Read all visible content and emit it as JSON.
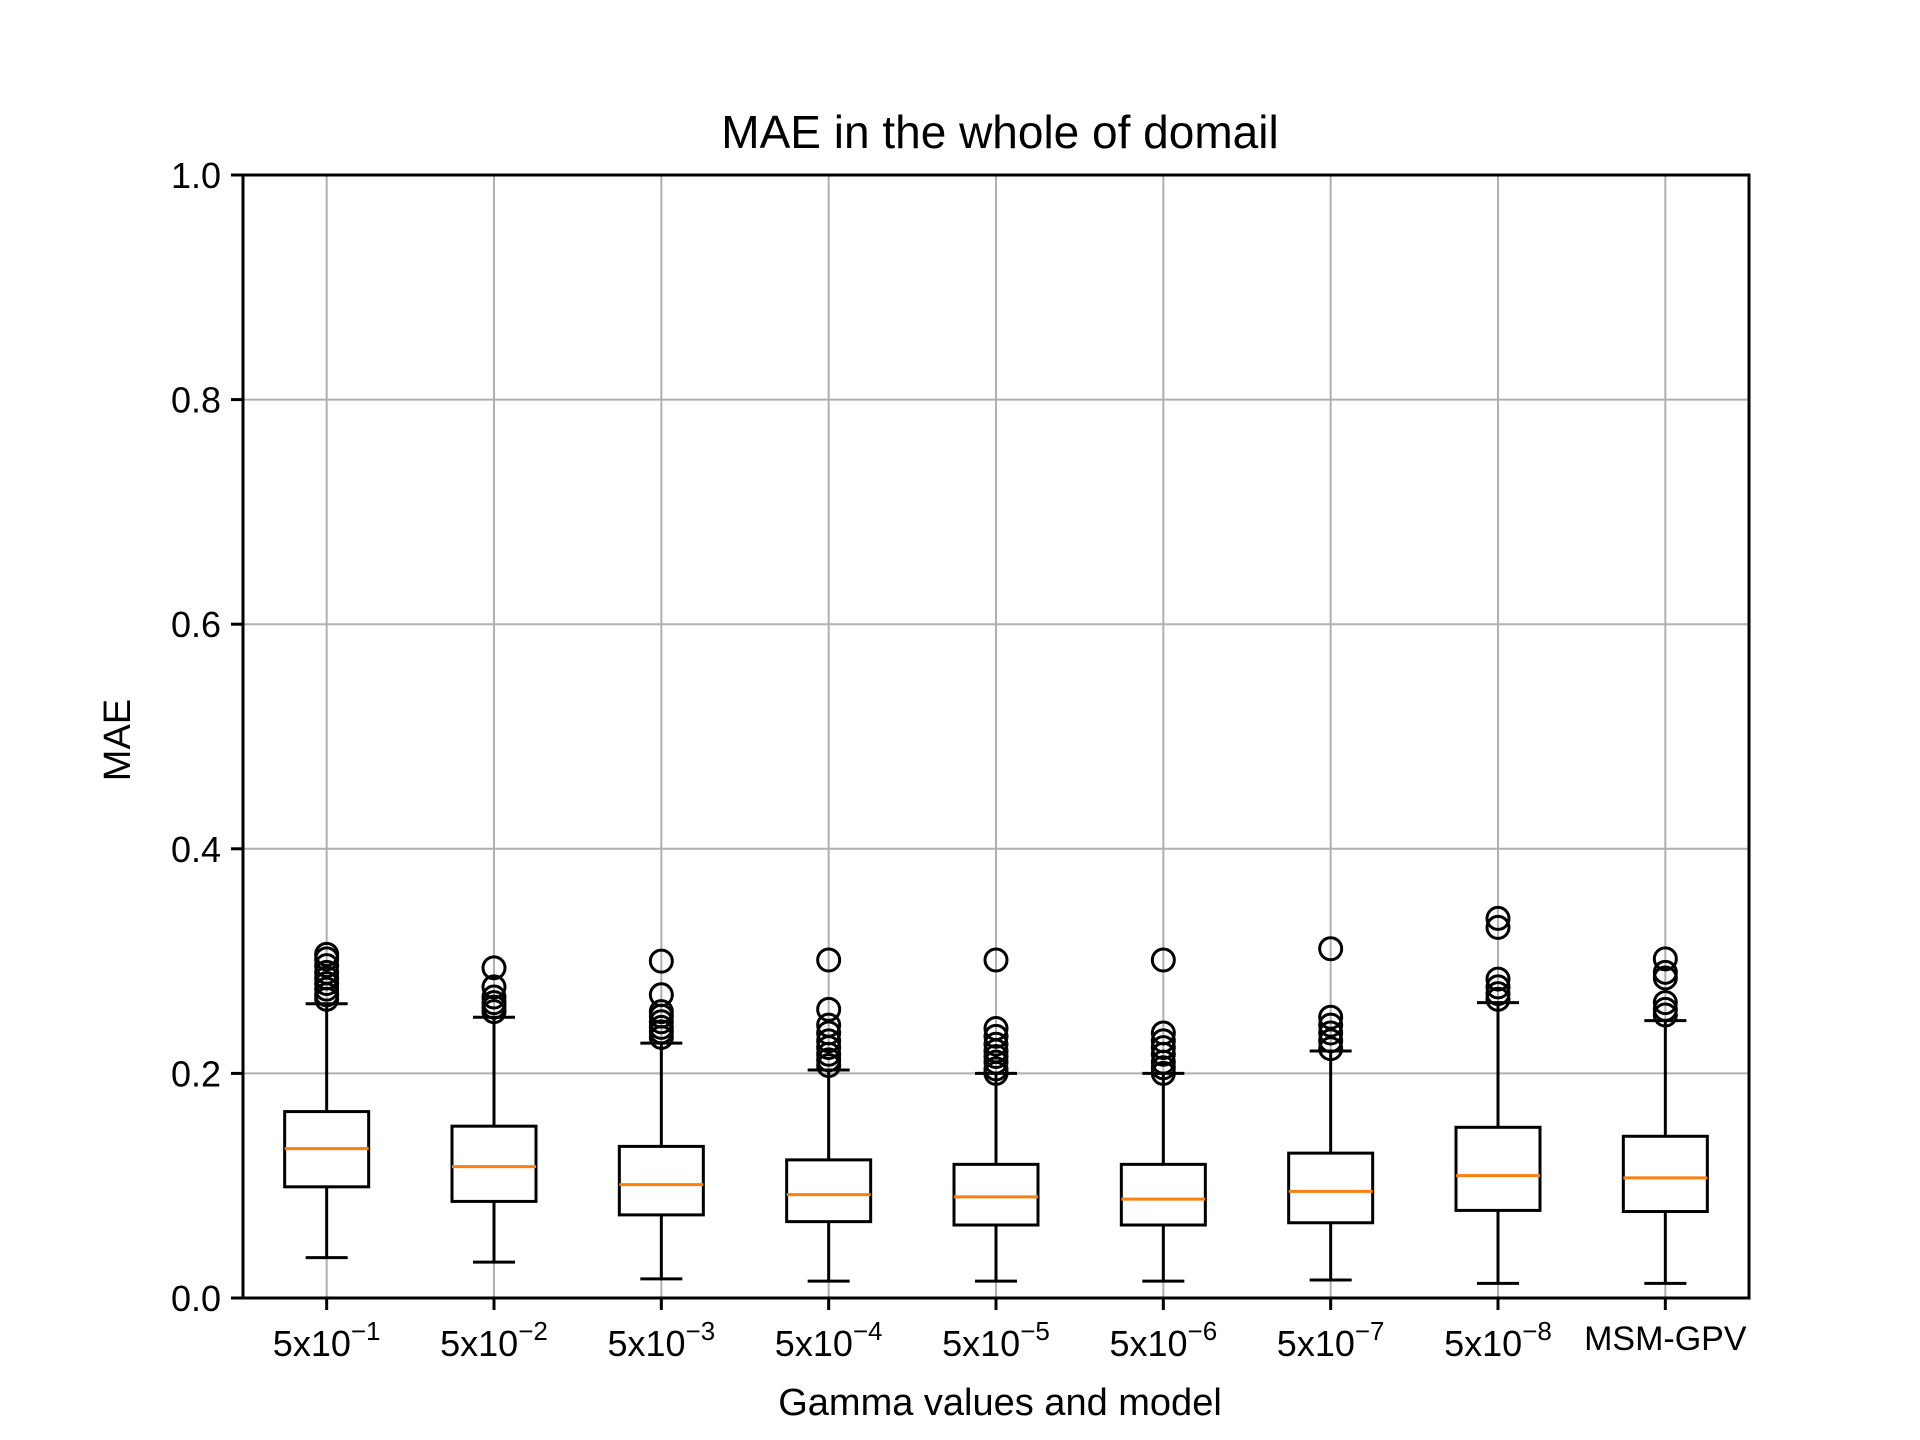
{
  "chart_data": {
    "type": "box",
    "title": "MAE in the whole of domail",
    "xlabel": "Gamma values and model",
    "ylabel": "MAE",
    "ylim": [
      0,
      1.0
    ],
    "yticks": [
      "0.0",
      "0.2",
      "0.4",
      "0.6",
      "0.8",
      "1.0"
    ],
    "yticks_values": [
      0,
      0.2,
      0.4,
      0.6,
      0.8,
      1.0
    ],
    "grid": true,
    "colors": {
      "box": "#000000",
      "median": "#ff7f0e",
      "grid": "#b0b0b0"
    },
    "categories": [
      {
        "label": "5x10",
        "exp": "−1"
      },
      {
        "label": "5x10",
        "exp": "−2"
      },
      {
        "label": "5x10",
        "exp": "−3"
      },
      {
        "label": "5x10",
        "exp": "−4"
      },
      {
        "label": "5x10",
        "exp": "−5"
      },
      {
        "label": "5x10",
        "exp": "−6"
      },
      {
        "label": "5x10",
        "exp": "−7"
      },
      {
        "label": "5x10",
        "exp": "−8"
      },
      {
        "label": "MSM-GPV",
        "exp": ""
      }
    ],
    "boxes": [
      {
        "whislo": 0.036,
        "q1": 0.099,
        "med": 0.133,
        "q3": 0.166,
        "whishi": 0.262,
        "fliers": [
          0.266,
          0.27,
          0.275,
          0.28,
          0.285,
          0.29,
          0.296,
          0.302,
          0.306
        ]
      },
      {
        "whislo": 0.032,
        "q1": 0.086,
        "med": 0.117,
        "q3": 0.153,
        "whishi": 0.25,
        "fliers": [
          0.255,
          0.259,
          0.263,
          0.268,
          0.277,
          0.294
        ]
      },
      {
        "whislo": 0.017,
        "q1": 0.074,
        "med": 0.101,
        "q3": 0.135,
        "whishi": 0.227,
        "fliers": [
          0.232,
          0.237,
          0.241,
          0.246,
          0.251,
          0.255,
          0.27,
          0.3
        ]
      },
      {
        "whislo": 0.015,
        "q1": 0.068,
        "med": 0.092,
        "q3": 0.123,
        "whishi": 0.203,
        "fliers": [
          0.207,
          0.212,
          0.217,
          0.223,
          0.229,
          0.236,
          0.243,
          0.257,
          0.301
        ]
      },
      {
        "whislo": 0.015,
        "q1": 0.065,
        "med": 0.09,
        "q3": 0.119,
        "whishi": 0.2,
        "fliers": [
          0.2,
          0.204,
          0.21,
          0.215,
          0.22,
          0.226,
          0.233,
          0.24,
          0.301
        ]
      },
      {
        "whislo": 0.015,
        "q1": 0.065,
        "med": 0.088,
        "q3": 0.119,
        "whishi": 0.2,
        "fliers": [
          0.2,
          0.205,
          0.21,
          0.217,
          0.223,
          0.229,
          0.236,
          0.301
        ]
      },
      {
        "whislo": 0.016,
        "q1": 0.067,
        "med": 0.095,
        "q3": 0.129,
        "whishi": 0.22,
        "fliers": [
          0.222,
          0.229,
          0.236,
          0.243,
          0.25,
          0.311
        ]
      },
      {
        "whislo": 0.013,
        "q1": 0.078,
        "med": 0.109,
        "q3": 0.152,
        "whishi": 0.263,
        "fliers": [
          0.266,
          0.271,
          0.277,
          0.284,
          0.33,
          0.338
        ]
      },
      {
        "whislo": 0.013,
        "q1": 0.077,
        "med": 0.107,
        "q3": 0.144,
        "whishi": 0.247,
        "fliers": [
          0.252,
          0.257,
          0.263,
          0.285,
          0.29,
          0.302
        ]
      }
    ]
  }
}
